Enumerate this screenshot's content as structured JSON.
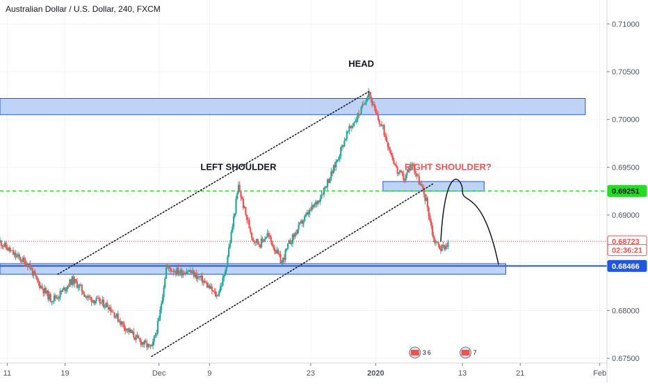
{
  "chart_data": {
    "type": "candlestick",
    "title": "Australian Dollar / U.S. Dollar, 240, FXCM",
    "ylim": [
      0.6745,
      0.7125
    ],
    "y_ticks": [
      0.675,
      0.68,
      0.685,
      0.69,
      0.695,
      0.7,
      0.705,
      0.71
    ],
    "y_tick_labels": [
      "0.67500",
      "0.68000",
      "0.68500",
      "0.69000",
      "0.69500",
      "0.70000",
      "0.70500",
      "0.71000"
    ],
    "x_axis": {
      "start_date": "2019-11-10",
      "end_date": "2020-02-02",
      "ticks": [
        {
          "date": "2019-11-11",
          "label": "11"
        },
        {
          "date": "2019-11-19",
          "label": "19"
        },
        {
          "date": "2019-12-02",
          "label": "Dec"
        },
        {
          "date": "2019-12-09",
          "label": "9"
        },
        {
          "date": "2019-12-23",
          "label": "23"
        },
        {
          "date": "2020-01-01",
          "label": "2020"
        },
        {
          "date": "2020-01-13",
          "label": "13"
        },
        {
          "date": "2020-01-21",
          "label": "21"
        },
        {
          "date": "2020-02-01",
          "label": "Feb"
        }
      ]
    },
    "price_path": [
      [
        "2019-11-10",
        0.6872
      ],
      [
        "2019-11-12",
        0.6858
      ],
      [
        "2019-11-14",
        0.6848
      ],
      [
        "2019-11-15",
        0.6832
      ],
      [
        "2019-11-17",
        0.6812
      ],
      [
        "2019-11-18",
        0.6815
      ],
      [
        "2019-11-20",
        0.6832
      ],
      [
        "2019-11-21",
        0.6825
      ],
      [
        "2019-11-22",
        0.6814
      ],
      [
        "2019-11-25",
        0.6805
      ],
      [
        "2019-11-27",
        0.6785
      ],
      [
        "2019-11-29",
        0.677
      ],
      [
        "2019-12-01",
        0.676
      ],
      [
        "2019-12-02",
        0.679
      ],
      [
        "2019-12-03",
        0.6845
      ],
      [
        "2019-12-05",
        0.684
      ],
      [
        "2019-12-06",
        0.6842
      ],
      [
        "2019-12-08",
        0.6832
      ],
      [
        "2019-12-10",
        0.6815
      ],
      [
        "2019-12-11",
        0.6835
      ],
      [
        "2019-12-12",
        0.688
      ],
      [
        "2019-12-13",
        0.693
      ],
      [
        "2019-12-14",
        0.69
      ],
      [
        "2019-12-15",
        0.6875
      ],
      [
        "2019-12-16",
        0.687
      ],
      [
        "2019-12-17",
        0.688
      ],
      [
        "2019-12-19",
        0.685
      ],
      [
        "2019-12-20",
        0.687
      ],
      [
        "2019-12-22",
        0.6895
      ],
      [
        "2019-12-24",
        0.6915
      ],
      [
        "2019-12-26",
        0.6945
      ],
      [
        "2019-12-28",
        0.6985
      ],
      [
        "2019-12-30",
        0.701
      ],
      [
        "2019-12-31",
        0.703
      ],
      [
        "2020-01-01",
        0.7005
      ],
      [
        "2020-01-02",
        0.699
      ],
      [
        "2020-01-04",
        0.6945
      ],
      [
        "2020-01-05",
        0.6938
      ],
      [
        "2020-01-06",
        0.6955
      ],
      [
        "2020-01-07",
        0.6935
      ],
      [
        "2020-01-08",
        0.6915
      ],
      [
        "2020-01-09",
        0.6875
      ],
      [
        "2020-01-10",
        0.6865
      ],
      [
        "2020-01-11",
        0.687
      ]
    ],
    "zones": [
      {
        "name": "resistance-zone",
        "from": "2019-11-10",
        "to": "2020-01-30",
        "y_low": 0.7005,
        "y_high": 0.7022
      },
      {
        "name": "right-shoulder-zone",
        "from": "2020-01-02",
        "to": "2020-01-16",
        "y_low": 0.6925,
        "y_high": 0.6935
      },
      {
        "name": "support-zone",
        "from": "2019-11-10",
        "to": "2020-01-19",
        "y_low": 0.6838,
        "y_high": 0.6849
      }
    ],
    "lines": [
      {
        "name": "level-line-0.69251",
        "y": 0.69251,
        "color": "#22dd22",
        "style": "dashed"
      },
      {
        "name": "level-line-0.68723",
        "y": 0.68723,
        "color": "#ef5350",
        "style": "dotted"
      },
      {
        "name": "level-line-0.68466",
        "y": 0.68466,
        "color": "#2256dd",
        "style": "solid"
      }
    ],
    "channel_lines": [
      {
        "name": "channel-upper",
        "from": [
          "2019-11-18",
          0.6838
        ],
        "to": [
          "2019-12-31",
          0.7029
        ]
      },
      {
        "name": "channel-lower",
        "from": [
          "2019-12-01",
          0.6752
        ],
        "to": [
          "2020-01-09",
          0.6933
        ]
      }
    ],
    "projection_arc": {
      "from": [
        "2020-01-10",
        0.6872
      ],
      "peak": [
        "2020-01-13",
        0.6925
      ],
      "to": [
        "2020-01-18",
        0.6848
      ]
    },
    "annotations": [
      {
        "text": "HEAD",
        "date": "2019-12-30",
        "y": 0.7055,
        "color": "#131722"
      },
      {
        "text": "LEFT SHOULDER",
        "date": "2019-12-13",
        "y": 0.6947,
        "color": "#131722"
      },
      {
        "text": "RIGHT SHOULDER?",
        "date": "2020-01-11",
        "y": 0.6947,
        "color": "#ef5350"
      }
    ],
    "price_labels": [
      {
        "text": "0.69251",
        "y": 0.69251,
        "bg": "#22dd22",
        "fg": "#131722"
      },
      {
        "text": "0.68723",
        "y": 0.68723,
        "bg": "#ffffff",
        "fg": "#ef5350",
        "border": "#ef5350"
      },
      {
        "text": "02:36:21",
        "y": 0.68632,
        "bg": "#ffffff",
        "fg": "#ef5350",
        "border": "#ef5350"
      },
      {
        "text": "0.68466",
        "y": 0.68466,
        "bg": "#2256dd",
        "fg": "#ffffff"
      }
    ],
    "event_flags": [
      {
        "date": "2020-01-07",
        "count": "3",
        "extra": "6"
      },
      {
        "date": "2020-01-14",
        "count": "7",
        "extra": ""
      }
    ],
    "colors": {
      "up": "#26a69a",
      "down": "#ef5350",
      "zone_fill": "#b3cbf5",
      "zone_stroke": "#2256dd",
      "axis_text": "#4c525e",
      "grid": "#f0f3fa",
      "channel": "#131722",
      "arc": "#131722"
    }
  }
}
